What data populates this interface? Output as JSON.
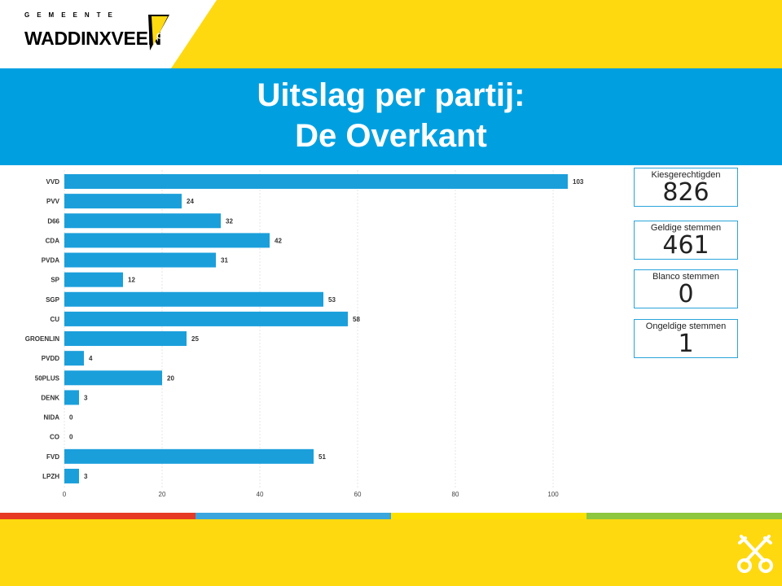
{
  "logo": {
    "top_text": "GEMEENTE",
    "name": "WADDINXVEEN"
  },
  "header": {
    "title_line1": "Uitslag per partij:",
    "title_line2": "De Overkant"
  },
  "cards": [
    {
      "label": "Kiesgerechtigden",
      "value": "826"
    },
    {
      "label": "Geldige stemmen",
      "value": "461"
    },
    {
      "label": "Blanco stemmen",
      "value": "0"
    },
    {
      "label": "Ongeldige stemmen",
      "value": "1"
    }
  ],
  "chart_data": {
    "type": "bar",
    "orientation": "horizontal",
    "categories": [
      "VVD",
      "PVV",
      "D66",
      "CDA",
      "PVDA",
      "SP",
      "SGP",
      "CU",
      "GROENLIN",
      "PVDD",
      "50PLUS",
      "DENK",
      "NIDA",
      "CO",
      "FVD",
      "LPZH"
    ],
    "values": [
      103,
      24,
      32,
      42,
      31,
      12,
      53,
      58,
      25,
      4,
      20,
      3,
      0,
      0,
      51,
      3
    ],
    "xlim": [
      0,
      103
    ],
    "xticks": [
      0,
      20,
      40,
      60,
      80,
      100
    ],
    "grid": true,
    "bar_color": "#1a9fdb",
    "data_labels": true
  },
  "colors": {
    "brand_yellow": "#ffd90f",
    "brand_blue": "#00a0e0",
    "stripes": [
      "#e63a24",
      "#3aa6dd",
      "#ffe100",
      "#8dc63f"
    ]
  }
}
